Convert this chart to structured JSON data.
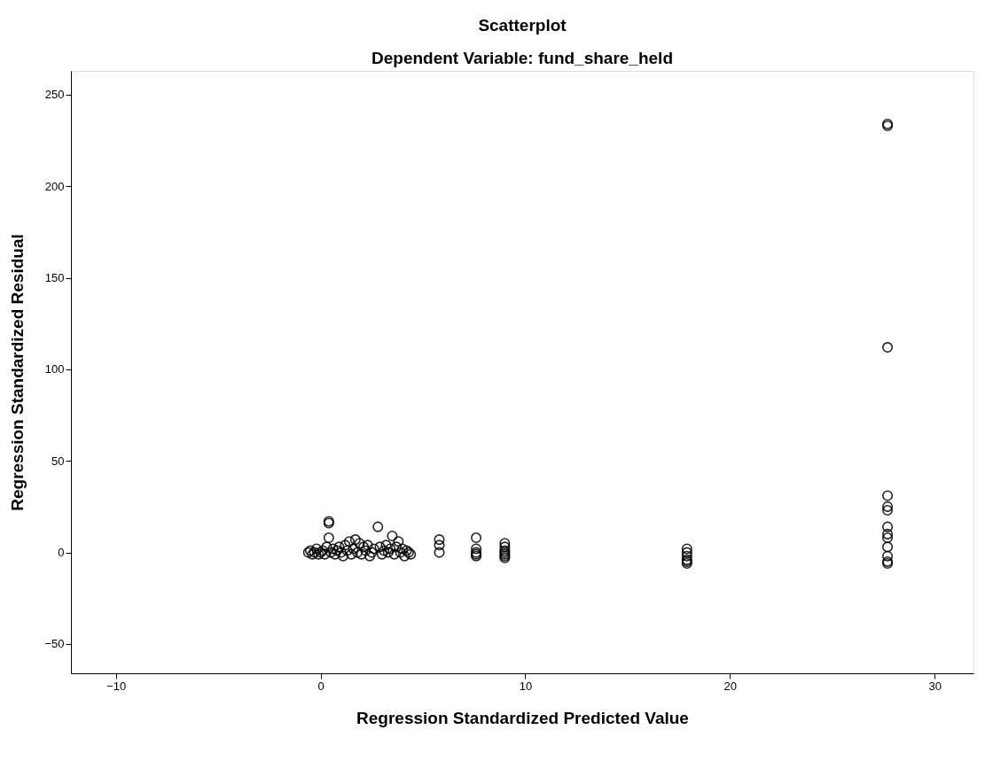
{
  "chart_data": {
    "type": "scatter",
    "title": "Scatterplot",
    "subtitle": "Dependent Variable: fund_share_held",
    "xlabel": "Regression Standardized Predicted Value",
    "ylabel": "Regression Standardized Residual",
    "x": [
      -0.6,
      -0.5,
      -0.4,
      -0.3,
      -0.2,
      -0.1,
      0,
      0.1,
      0.2,
      0.3,
      0.4,
      0.4,
      0.4,
      0.5,
      0.6,
      0.7,
      0.8,
      0.9,
      1.0,
      1.1,
      1.2,
      1.3,
      1.4,
      1.5,
      1.6,
      1.7,
      1.8,
      1.9,
      2.0,
      2.1,
      2.2,
      2.3,
      2.4,
      2.5,
      2.6,
      2.8,
      2.9,
      3.0,
      3.1,
      3.2,
      3.3,
      3.4,
      3.5,
      3.6,
      3.7,
      3.8,
      3.9,
      4.0,
      4.1,
      4.2,
      4.3,
      4.4,
      5.8,
      5.8,
      5.8,
      7.6,
      7.6,
      7.6,
      7.6,
      7.6,
      9.0,
      9.0,
      9.0,
      9.0,
      9.0,
      9.0,
      9.0,
      17.9,
      17.9,
      17.9,
      17.9,
      17.9,
      17.9,
      27.7,
      27.7,
      27.7,
      27.7,
      27.7,
      27.7,
      27.7,
      27.7,
      27.7,
      27.7,
      27.7,
      27.7,
      27.7
    ],
    "series": [
      {
        "color": "#000000",
        "values": [
          0,
          1,
          -1,
          0,
          2,
          -1,
          0,
          1,
          -1,
          3,
          17,
          8,
          16,
          0,
          2,
          -1,
          1,
          3,
          0,
          -2,
          4,
          1,
          6,
          -1,
          2,
          7,
          0,
          5,
          -1,
          3,
          1,
          4,
          -2,
          0,
          2,
          14,
          3,
          -1,
          1,
          4,
          0,
          2,
          9,
          -1,
          3,
          6,
          0,
          2,
          -2,
          1,
          0,
          -1,
          7,
          4,
          0,
          8,
          2,
          0,
          -1,
          -2,
          5,
          3,
          1,
          0,
          -1,
          -2,
          -3,
          2,
          0,
          -2,
          -4,
          -5,
          -6,
          234,
          233,
          112,
          31,
          25,
          23,
          14,
          10,
          8,
          3,
          -2,
          -5,
          -6
        ]
      }
    ],
    "xlim": [
      -12.2,
      31.9
    ],
    "ylim": [
      -66,
      263
    ],
    "xticks": [
      -10,
      0,
      10,
      20,
      30
    ],
    "yticks": [
      -50,
      0,
      50,
      100,
      150,
      200,
      250
    ],
    "grid": false,
    "marker": "circle"
  }
}
